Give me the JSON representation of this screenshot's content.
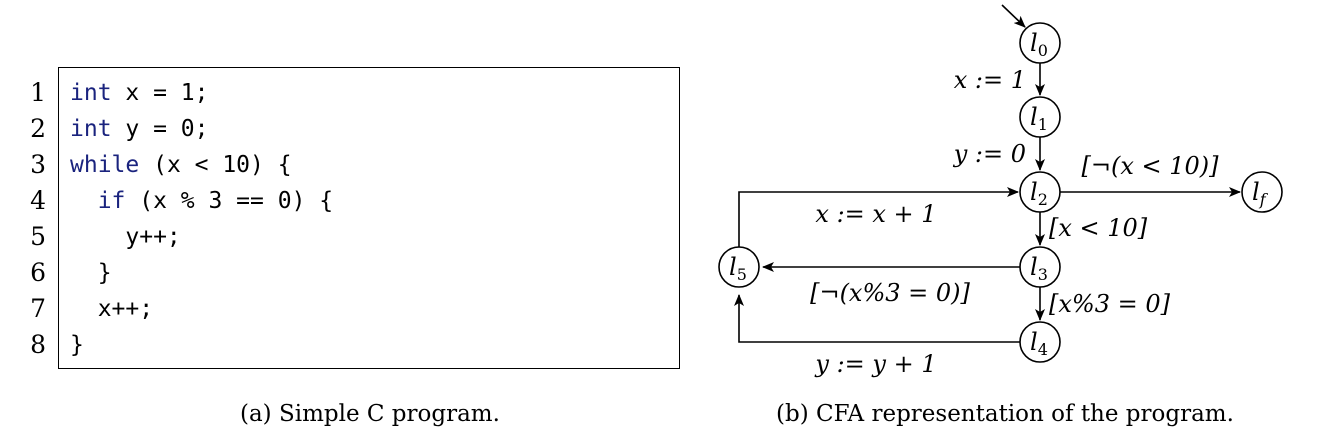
{
  "code_panel": {
    "line_numbers": [
      "1",
      "2",
      "3",
      "4",
      "5",
      "6",
      "7",
      "8"
    ],
    "lines": [
      {
        "kw": "int",
        "rest": " x = 1;"
      },
      {
        "kw": "int",
        "rest": " y = 0;"
      },
      {
        "kw": "while",
        "rest": " (x < 10) {"
      },
      {
        "indent": "  ",
        "kw": "if",
        "rest": " (x % 3 == 0) {"
      },
      {
        "indent": "    ",
        "kw": "",
        "rest": "y++;"
      },
      {
        "indent": "  ",
        "kw": "",
        "rest": "}"
      },
      {
        "indent": "  ",
        "kw": "",
        "rest": "x++;"
      },
      {
        "indent": "",
        "kw": "",
        "rest": "}"
      }
    ],
    "caption": "(a) Simple C program."
  },
  "cfa_panel": {
    "nodes": {
      "l0": {
        "base": "l",
        "sub": "0"
      },
      "l1": {
        "base": "l",
        "sub": "1"
      },
      "l2": {
        "base": "l",
        "sub": "2"
      },
      "l3": {
        "base": "l",
        "sub": "3"
      },
      "l4": {
        "base": "l",
        "sub": "4"
      },
      "l5": {
        "base": "l",
        "sub": "5"
      },
      "lf": {
        "base": "l",
        "sub": "f"
      }
    },
    "edges": {
      "l0_l1": "x := 1",
      "l1_l2": "y := 0",
      "l2_lf": "[¬(x < 10)]",
      "l2_l3": "[x < 10]",
      "l3_l4": "[x%3 = 0]",
      "l3_l5": "[¬(x%3 = 0)]",
      "l4_l5": "y := y + 1",
      "l5_l2": "x := x + 1"
    },
    "caption": "(b) CFA representation of the program."
  }
}
